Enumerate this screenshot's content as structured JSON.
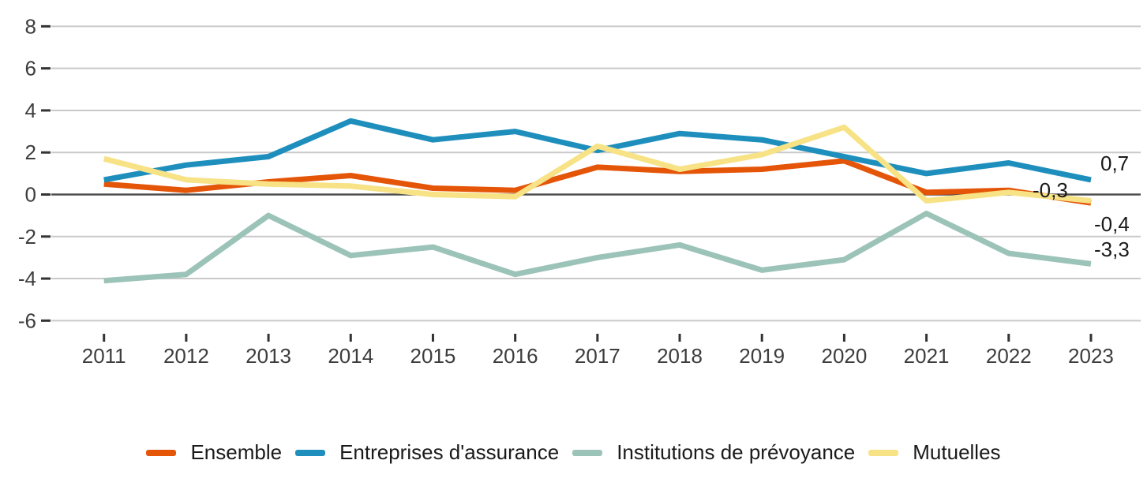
{
  "chart_data": {
    "type": "line",
    "title": "",
    "xlabel": "",
    "ylabel": "",
    "x": [
      2011,
      2012,
      2013,
      2014,
      2015,
      2016,
      2017,
      2018,
      2019,
      2020,
      2021,
      2022,
      2023
    ],
    "y_ticks": [
      8,
      6,
      4,
      2,
      0,
      -2,
      -4,
      -6
    ],
    "ylim": [
      -6.5,
      8.5
    ],
    "grid": true,
    "zero_line": true,
    "legend_position": "bottom",
    "decimal_separator": ",",
    "series": [
      {
        "name": "Ensemble",
        "color": "#e45508",
        "values": [
          0.5,
          0.2,
          0.6,
          0.9,
          0.3,
          0.2,
          1.3,
          1.1,
          1.2,
          1.6,
          0.1,
          0.2,
          -0.4
        ],
        "end_label": "-0,4"
      },
      {
        "name": "Entreprises d'assurance",
        "color": "#1e8fbd",
        "values": [
          0.7,
          1.4,
          1.8,
          3.5,
          2.6,
          3.0,
          2.1,
          2.9,
          2.6,
          1.8,
          1.0,
          1.5,
          0.7
        ],
        "end_label": "0,7"
      },
      {
        "name": "Institutions de prévoyance",
        "color": "#9cc3b8",
        "values": [
          -4.1,
          -3.8,
          -1.0,
          -2.9,
          -2.5,
          -3.8,
          -3.0,
          -2.4,
          -3.6,
          -3.1,
          -0.9,
          -2.8,
          -3.3
        ],
        "end_label": "-3,3"
      },
      {
        "name": "Mutuelles",
        "color": "#f7e285",
        "values": [
          1.7,
          0.7,
          0.5,
          0.4,
          0.0,
          -0.1,
          2.3,
          1.2,
          1.9,
          3.2,
          -0.3,
          0.1,
          -0.3
        ],
        "end_label": "-0,3"
      }
    ],
    "colors": {
      "grid": "#c9c9c9",
      "zero_line": "#4f4f4f",
      "axis_text": "#3d3d3d",
      "value_label_text": "#1a1a1a",
      "background": "#ffffff"
    }
  }
}
